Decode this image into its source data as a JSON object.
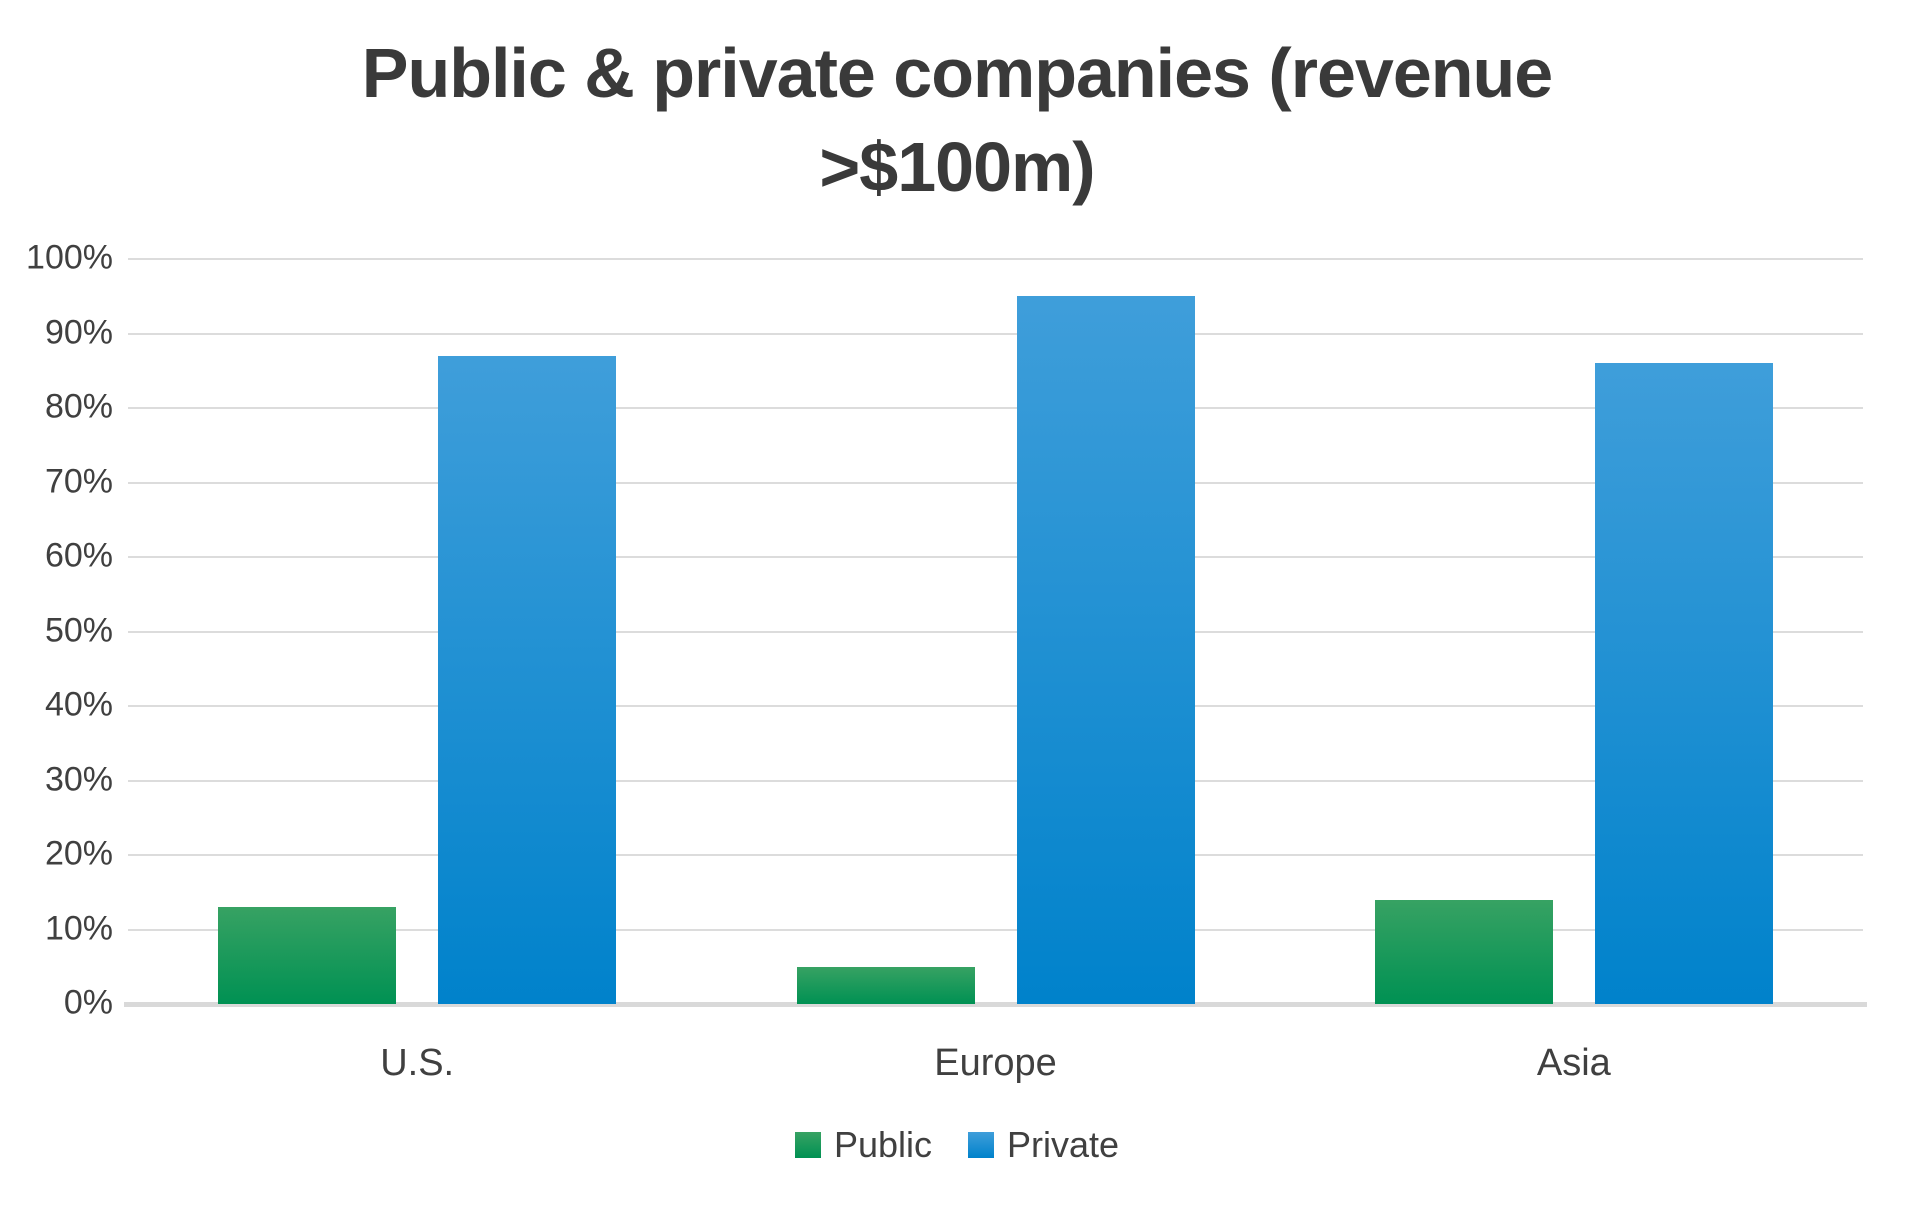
{
  "chart_data": {
    "type": "bar",
    "title": "Public & private companies (revenue >$100m)",
    "title_lines": [
      "Public & private companies (revenue",
      ">$100m)"
    ],
    "categories": [
      "U.S.",
      "Europe",
      "Asia"
    ],
    "series": [
      {
        "name": "Public",
        "values": [
          13,
          5,
          14
        ],
        "color_top": "#37a263",
        "color_bottom": "#009153"
      },
      {
        "name": "Private",
        "values": [
          87,
          95,
          86
        ],
        "color_top": "#3f9eda",
        "color_bottom": "#0082cb"
      }
    ],
    "y_axis": {
      "tick_labels": [
        "100%",
        "90%",
        "80%",
        "70%",
        "60%",
        "50%",
        "40%",
        "30%",
        "20%",
        "10%",
        "0%"
      ],
      "min": 0,
      "max": 100,
      "unit": "%"
    },
    "grid": true,
    "legend_position": "bottom",
    "colors": {
      "text": "#404040",
      "title_text": "#3a3a3a",
      "gridline": "#dcdcdc",
      "axis_line": "#d9d9d9"
    }
  }
}
